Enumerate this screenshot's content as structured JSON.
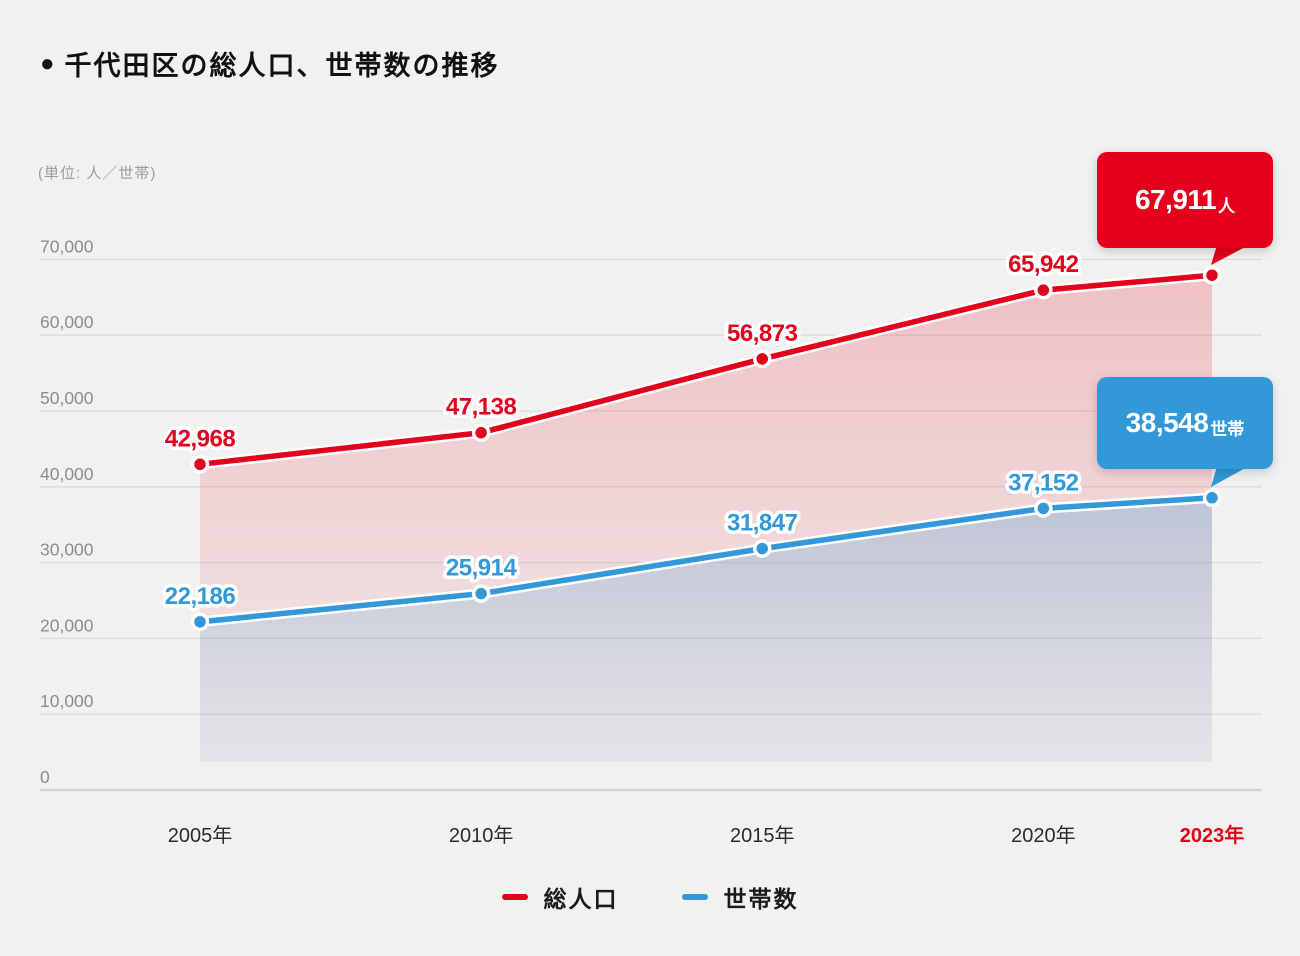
{
  "title": {
    "bullet": "●",
    "text": "千代田区の総人口、世帯数の推移"
  },
  "unit_label": "(単位: 人／世帯)",
  "colors": {
    "background": "#f1f1ef",
    "red": "#e4001c",
    "blue": "#3298d8",
    "grid": "#dcdcdc",
    "grid_zero": "#d4d4d4",
    "y_axis_text": "#8c8c8c",
    "x_axis_text": "#2b2b2b",
    "x_axis_highlight": "#e4001c"
  },
  "chart_data": {
    "type": "line",
    "title": "千代田区の総人口、世帯数の推移",
    "categories": [
      "2005年",
      "2010年",
      "2015年",
      "2020年",
      "2023年"
    ],
    "x_years": [
      2005,
      2010,
      2015,
      2020,
      2023
    ],
    "highlight_last_category": true,
    "ylim": [
      0,
      70000
    ],
    "yticks": [
      {
        "value": 0,
        "label": "0"
      },
      {
        "value": 10000,
        "label": "10,000"
      },
      {
        "value": 20000,
        "label": "20,000"
      },
      {
        "value": 30000,
        "label": "30,000"
      },
      {
        "value": 40000,
        "label": "40,000"
      },
      {
        "value": 50000,
        "label": "50,000"
      },
      {
        "value": 60000,
        "label": "60,000"
      },
      {
        "value": 70000,
        "label": "70,000"
      }
    ],
    "grid": true,
    "legend_position": "bottom",
    "series": [
      {
        "name": "総人口",
        "color": "#e4001c",
        "values": [
          42968,
          47138,
          56873,
          65942,
          67911
        ],
        "point_labels": [
          "42,968",
          "47,138",
          "56,873",
          "65,942"
        ],
        "callout": {
          "value": "67,911",
          "unit": "人"
        }
      },
      {
        "name": "世帯数",
        "color": "#3298d8",
        "values": [
          22186,
          25914,
          31847,
          37152,
          38548
        ],
        "point_labels": [
          "22,186",
          "25,914",
          "31,847",
          "37,152"
        ],
        "callout": {
          "value": "38,548",
          "unit": "世帯"
        }
      }
    ]
  }
}
